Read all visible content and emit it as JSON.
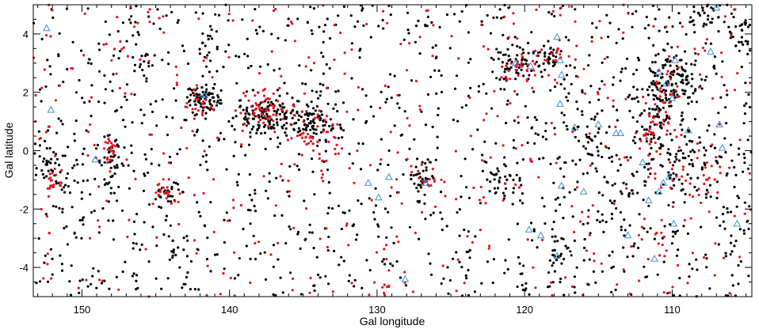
{
  "chart_data": {
    "type": "scatter",
    "xlabel": "Gal longitude",
    "ylabel": "Gal latitude",
    "xlim": [
      153.3,
      104.6
    ],
    "ylim": [
      -5,
      5
    ],
    "x_ticks": [
      150,
      140,
      130,
      120,
      110
    ],
    "x_tick_labels": [
      "150",
      "140",
      "130",
      "120",
      "110"
    ],
    "y_ticks": [
      -4,
      -2,
      0,
      2,
      4
    ],
    "y_tick_labels": [
      "-4",
      "-2",
      "0",
      "2",
      "4"
    ],
    "x_minor_step": 1,
    "y_minor_step": 0.5,
    "grid": false,
    "legend": "none",
    "series": [
      {
        "marker": "dot",
        "color": "#000000",
        "pattern": "dense clusters over background",
        "clusters": [
          {
            "lon": 141.8,
            "lat": 1.75,
            "spread_lon": 0.6,
            "spread_lat": 0.25,
            "count": 70
          },
          {
            "lon": 137.5,
            "lat": 1.2,
            "spread_lon": 1.2,
            "spread_lat": 0.35,
            "count": 110
          },
          {
            "lon": 134.5,
            "lat": 1.0,
            "spread_lon": 1.0,
            "spread_lat": 0.3,
            "count": 90
          },
          {
            "lon": 148.0,
            "lat": -0.4,
            "spread_lon": 0.5,
            "spread_lat": 0.4,
            "count": 40
          },
          {
            "lon": 152.0,
            "lat": -0.7,
            "spread_lon": 0.6,
            "spread_lat": 0.4,
            "count": 35
          },
          {
            "lon": 144.2,
            "lat": -1.4,
            "spread_lon": 0.5,
            "spread_lat": 0.3,
            "count": 25
          },
          {
            "lon": 120.5,
            "lat": 2.9,
            "spread_lon": 0.8,
            "spread_lat": 0.3,
            "count": 45
          },
          {
            "lon": 118.5,
            "lat": 3.1,
            "spread_lon": 0.6,
            "spread_lat": 0.2,
            "count": 35
          },
          {
            "lon": 110.0,
            "lat": 2.5,
            "spread_lon": 1.0,
            "spread_lat": 0.4,
            "count": 110
          },
          {
            "lon": 111.0,
            "lat": 1.0,
            "spread_lon": 0.8,
            "spread_lat": 0.8,
            "count": 70
          },
          {
            "lon": 109.5,
            "lat": -0.3,
            "spread_lon": 1.5,
            "spread_lat": 0.8,
            "count": 80
          },
          {
            "lon": 105.3,
            "lat": 4.0,
            "spread_lon": 0.4,
            "spread_lat": 0.3,
            "count": 25
          },
          {
            "lon": 107.5,
            "lat": 4.6,
            "spread_lon": 1.0,
            "spread_lat": 0.3,
            "count": 25
          },
          {
            "lon": 126.8,
            "lat": -1.0,
            "spread_lon": 0.3,
            "spread_lat": 0.4,
            "count": 30
          },
          {
            "lon": 121.5,
            "lat": -1.0,
            "spread_lon": 0.6,
            "spread_lat": 0.3,
            "count": 25
          },
          {
            "lon": 117.7,
            "lat": -3.5,
            "spread_lon": 0.3,
            "spread_lat": 0.4,
            "count": 25
          },
          {
            "lon": 143.7,
            "lat": -3.4,
            "spread_lon": 0.3,
            "spread_lat": 0.3,
            "count": 12
          },
          {
            "lon": 146.0,
            "lat": 3.0,
            "spread_lon": 0.4,
            "spread_lat": 0.3,
            "count": 12
          },
          {
            "lon": 141.5,
            "lat": 3.5,
            "spread_lon": 0.3,
            "spread_lat": 0.4,
            "count": 15
          },
          {
            "lon": 116.0,
            "lat": 0.5,
            "spread_lon": 1.2,
            "spread_lat": 0.8,
            "count": 40
          },
          {
            "lon": 113.5,
            "lat": -1.5,
            "spread_lon": 1.5,
            "spread_lat": 0.8,
            "count": 40
          }
        ],
        "background_count": 1200
      },
      {
        "marker": "dot",
        "color": "#e8141e",
        "pattern": "clusters over background",
        "clusters": [
          {
            "lon": 137.5,
            "lat": 1.4,
            "spread_lon": 1.0,
            "spread_lat": 0.35,
            "count": 60
          },
          {
            "lon": 134.0,
            "lat": 0.6,
            "spread_lon": 0.8,
            "spread_lat": 0.4,
            "count": 40
          },
          {
            "lon": 142.0,
            "lat": 1.6,
            "spread_lon": 0.5,
            "spread_lat": 0.3,
            "count": 20
          },
          {
            "lon": 148.2,
            "lat": 0.0,
            "spread_lon": 0.2,
            "spread_lat": 0.3,
            "count": 18
          },
          {
            "lon": 151.8,
            "lat": -1.0,
            "spread_lon": 0.4,
            "spread_lat": 0.3,
            "count": 20
          },
          {
            "lon": 144.5,
            "lat": -1.3,
            "spread_lon": 0.5,
            "spread_lat": 0.3,
            "count": 18
          },
          {
            "lon": 120.5,
            "lat": 2.8,
            "spread_lon": 0.6,
            "spread_lat": 0.3,
            "count": 25
          },
          {
            "lon": 118.0,
            "lat": 3.2,
            "spread_lon": 0.8,
            "spread_lat": 0.2,
            "count": 15
          },
          {
            "lon": 110.5,
            "lat": 1.8,
            "spread_lon": 0.6,
            "spread_lat": 0.8,
            "count": 35
          },
          {
            "lon": 111.5,
            "lat": 0.5,
            "spread_lon": 0.4,
            "spread_lat": 0.4,
            "count": 20
          },
          {
            "lon": 109.0,
            "lat": -0.8,
            "spread_lon": 1.5,
            "spread_lat": 0.6,
            "count": 30
          },
          {
            "lon": 126.5,
            "lat": -1.0,
            "spread_lon": 0.3,
            "spread_lat": 0.3,
            "count": 12
          },
          {
            "lon": 129.5,
            "lat": -4.6,
            "spread_lon": 0.6,
            "spread_lat": 0.2,
            "count": 10
          },
          {
            "lon": 111.0,
            "lat": -2.8,
            "spread_lon": 0.8,
            "spread_lat": 0.3,
            "count": 12
          }
        ],
        "background_count": 420
      },
      {
        "marker": "triangle-open",
        "color": "#3d8fd9",
        "points": [
          [
            152.4,
            4.2
          ],
          [
            152.1,
            1.4
          ],
          [
            149.1,
            -0.3
          ],
          [
            141.7,
            1.9
          ],
          [
            130.6,
            -1.1
          ],
          [
            129.9,
            -1.6
          ],
          [
            129.2,
            -0.9
          ],
          [
            128.1,
            -4.4
          ],
          [
            126.7,
            -1.1
          ],
          [
            120.6,
            3.0
          ],
          [
            119.6,
            2.9
          ],
          [
            117.8,
            3.9
          ],
          [
            117.6,
            3.1
          ],
          [
            117.5,
            2.6
          ],
          [
            117.6,
            1.6
          ],
          [
            117.8,
            -3.6
          ],
          [
            119.7,
            -2.7
          ],
          [
            118.9,
            -2.9
          ],
          [
            117.5,
            -1.2
          ],
          [
            116.6,
            0.8
          ],
          [
            116.0,
            -1.4
          ],
          [
            115.0,
            0.9
          ],
          [
            113.8,
            0.6
          ],
          [
            113.5,
            0.6
          ],
          [
            113.0,
            -2.9
          ],
          [
            112.0,
            -0.4
          ],
          [
            111.6,
            -1.7
          ],
          [
            111.2,
            -3.7
          ],
          [
            110.9,
            2.7
          ],
          [
            110.4,
            2.3
          ],
          [
            110.0,
            1.8
          ],
          [
            109.8,
            3.1
          ],
          [
            110.9,
            -1.4
          ],
          [
            110.6,
            -1.1
          ],
          [
            110.2,
            -0.9
          ],
          [
            109.9,
            -2.5
          ],
          [
            108.9,
            0.7
          ],
          [
            107.4,
            3.4
          ],
          [
            107.0,
            4.9
          ],
          [
            106.6,
            0.1
          ],
          [
            105.6,
            -2.5
          ],
          [
            106.8,
            0.9
          ]
        ]
      }
    ]
  }
}
